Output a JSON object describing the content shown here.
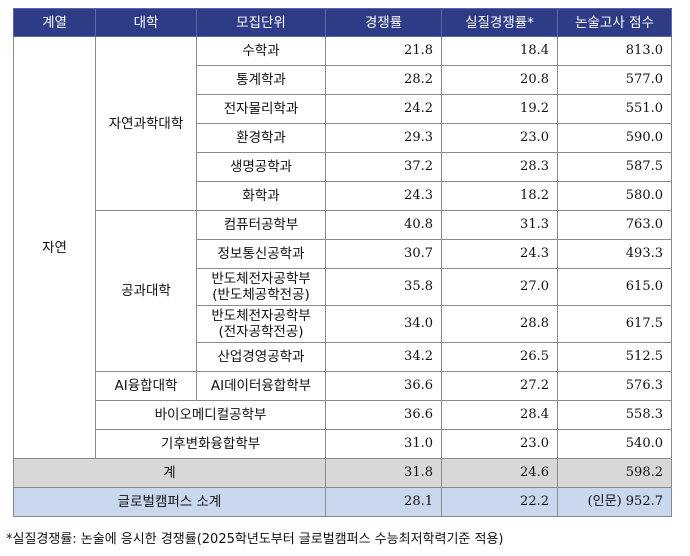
{
  "table": {
    "headers": [
      "계열",
      "대학",
      "모집단위",
      "경쟁률",
      "실질경쟁률*",
      "논술고사 점수"
    ],
    "field": "자연",
    "colleges": {
      "natural_science": "자연과학대학",
      "engineering": "공과대학",
      "ai": "AI융합대학"
    },
    "rows": [
      {
        "unit": "수학과",
        "rate": "21.8",
        "real": "18.4",
        "score": "813.0"
      },
      {
        "unit": "통계학과",
        "rate": "28.2",
        "real": "20.8",
        "score": "577.0"
      },
      {
        "unit": "전자물리학과",
        "rate": "24.2",
        "real": "19.2",
        "score": "551.0"
      },
      {
        "unit": "환경학과",
        "rate": "29.3",
        "real": "23.0",
        "score": "590.0"
      },
      {
        "unit": "생명공학과",
        "rate": "37.2",
        "real": "28.3",
        "score": "587.5"
      },
      {
        "unit": "화학과",
        "rate": "24.3",
        "real": "18.2",
        "score": "580.0"
      },
      {
        "unit": "컴퓨터공학부",
        "rate": "40.8",
        "real": "31.3",
        "score": "763.0"
      },
      {
        "unit": "정보통신공학과",
        "rate": "30.7",
        "real": "24.3",
        "score": "493.3"
      },
      {
        "unit": "반도체전자공학부",
        "unit2": "(반도체공학전공)",
        "rate": "35.8",
        "real": "27.0",
        "score": "615.0"
      },
      {
        "unit": "반도체전자공학부",
        "unit2": "(전자공학전공)",
        "rate": "34.0",
        "real": "28.8",
        "score": "617.5"
      },
      {
        "unit": "산업경영공학과",
        "rate": "34.2",
        "real": "26.5",
        "score": "512.5"
      },
      {
        "unit": "AI데이터융합학부",
        "rate": "36.6",
        "real": "27.2",
        "score": "576.3"
      },
      {
        "unit": "바이오메디컬공학부",
        "rate": "36.6",
        "real": "28.4",
        "score": "558.3"
      },
      {
        "unit": "기후변화융합학부",
        "rate": "31.0",
        "real": "23.0",
        "score": "540.0"
      }
    ],
    "total": {
      "label": "계",
      "rate": "31.8",
      "real": "24.6",
      "score": "598.2"
    },
    "global": {
      "label": "글로벌캠퍼스 소계",
      "rate": "28.1",
      "real": "22.2",
      "score": "(인문) 952.7"
    }
  },
  "footnote": "*실질경쟁률: 논술에 응시한 경쟁률(2025학년도부터 글로벌캠퍼스 수능최저학력기준 적용)"
}
